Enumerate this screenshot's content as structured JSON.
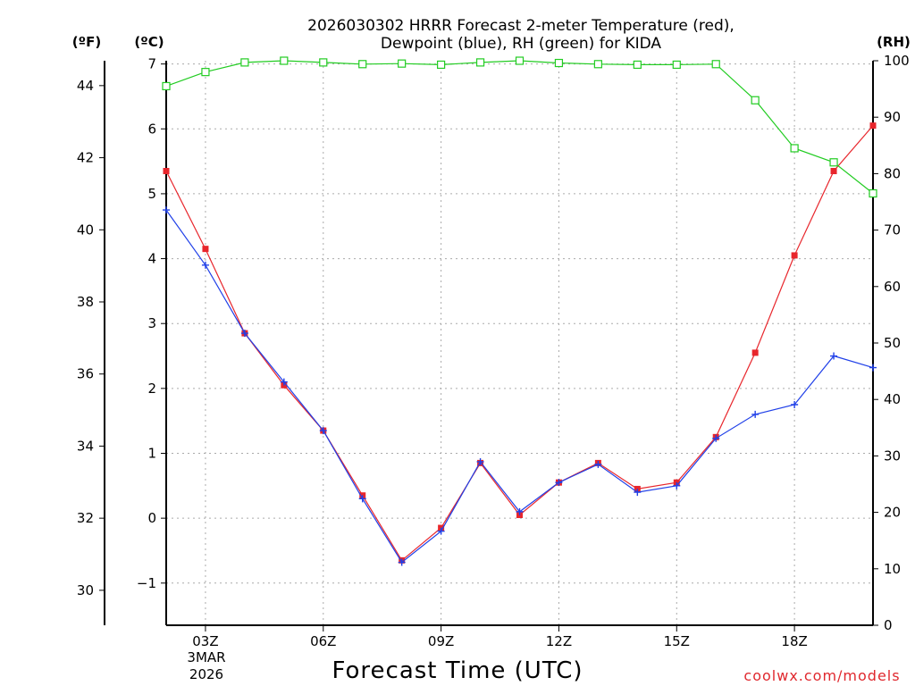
{
  "chart_data": {
    "type": "line",
    "title_lines": [
      "2026030302 HRRR Forecast 2-meter Temperature (red),",
      "Dewpoint (blue), RH (green) for KIDA"
    ],
    "xlabel": "Forecast Time (UTC)",
    "credit": "coolwx.com/models",
    "unit_labels": {
      "f": "(ºF)",
      "c": "(ºC)",
      "rh": "(RH)"
    },
    "x_range": [
      2,
      20
    ],
    "x_ticks": [
      {
        "x": 3,
        "label": "03Z"
      },
      {
        "x": 6,
        "label": "06Z"
      },
      {
        "x": 9,
        "label": "09Z"
      },
      {
        "x": 12,
        "label": "12Z"
      },
      {
        "x": 15,
        "label": "15Z"
      },
      {
        "x": 18,
        "label": "18Z"
      }
    ],
    "date_label": [
      "3MAR",
      "2026"
    ],
    "celsius_axis": {
      "range": [
        -1.65,
        7.05
      ],
      "ticks": [
        -1,
        0,
        1,
        2,
        3,
        4,
        5,
        6,
        7
      ]
    },
    "fahrenheit_axis": {
      "range": [
        29.03,
        44.69
      ],
      "ticks": [
        30,
        32,
        34,
        36,
        38,
        40,
        42,
        44
      ]
    },
    "rh_axis": {
      "range": [
        0,
        100
      ],
      "ticks": [
        0,
        10,
        20,
        30,
        40,
        50,
        60,
        70,
        80,
        90,
        100
      ]
    },
    "x": [
      2,
      3,
      4,
      5,
      6,
      7,
      8,
      9,
      10,
      11,
      12,
      13,
      14,
      15,
      16,
      17,
      18,
      19,
      20
    ],
    "series": [
      {
        "name": "Temperature",
        "unit": "C",
        "color": "#e8262c",
        "marker": "filled-square",
        "values": [
          5.35,
          4.15,
          2.85,
          2.05,
          1.35,
          0.35,
          -0.65,
          -0.15,
          0.85,
          0.05,
          0.55,
          0.85,
          0.45,
          0.55,
          1.25,
          2.55,
          4.05,
          5.35,
          6.05
        ]
      },
      {
        "name": "Dewpoint",
        "unit": "C",
        "color": "#2040e8",
        "marker": "plus",
        "values": [
          4.75,
          3.9,
          2.85,
          2.1,
          1.35,
          0.3,
          -0.68,
          -0.2,
          0.87,
          0.1,
          0.55,
          0.83,
          0.4,
          0.5,
          1.23,
          1.6,
          1.75,
          2.5,
          2.32
        ]
      },
      {
        "name": "RH",
        "unit": "%",
        "color": "#22cc22",
        "marker": "open-square",
        "values": [
          95.5,
          98,
          99.7,
          100,
          99.7,
          99.4,
          99.5,
          99.3,
          99.7,
          100,
          99.6,
          99.4,
          99.3,
          99.3,
          99.4,
          93,
          84.5,
          82,
          76.5
        ]
      }
    ]
  }
}
